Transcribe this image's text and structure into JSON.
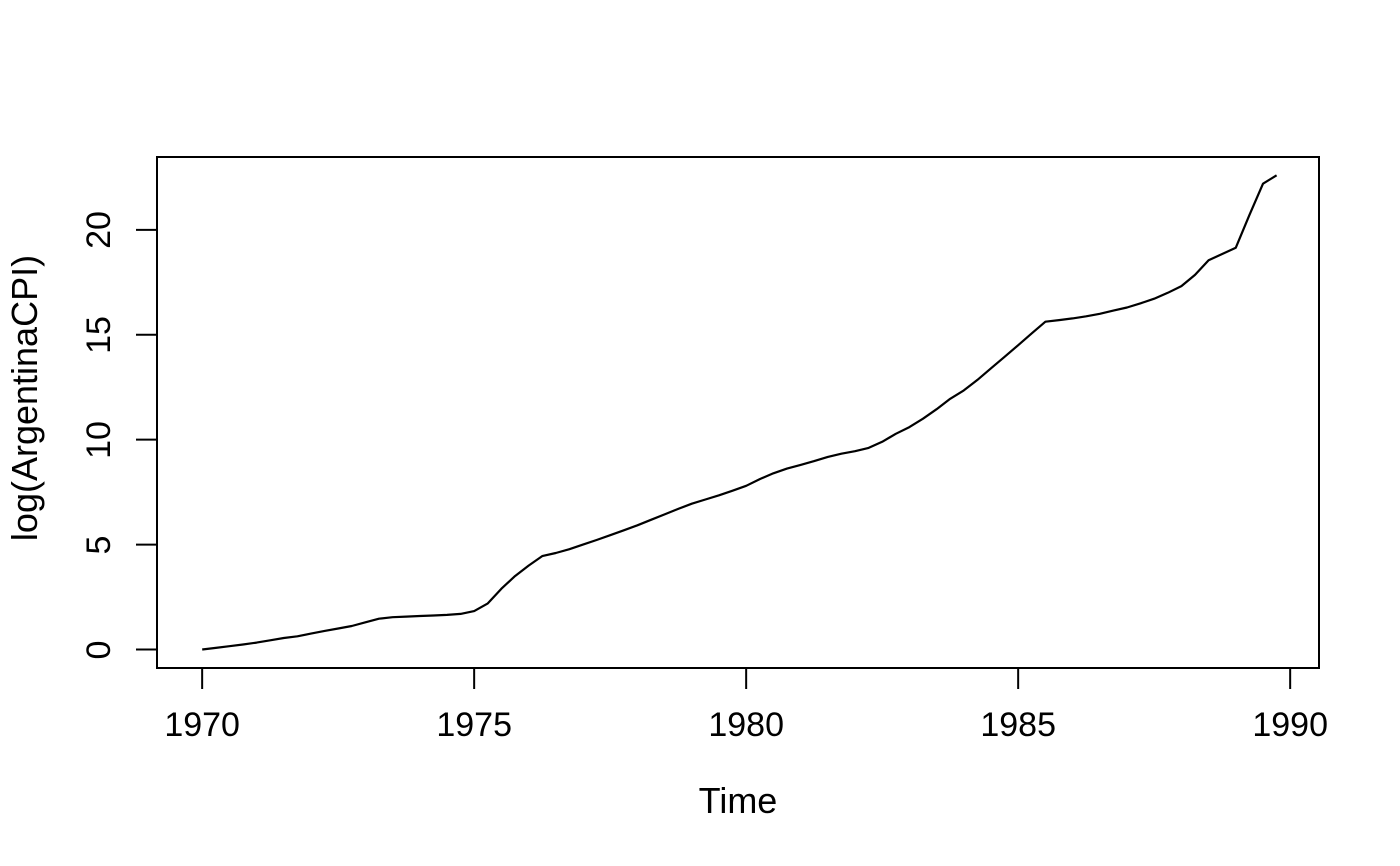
{
  "figure": {
    "background_color": "#ffffff",
    "axis_color": "#000000",
    "text_color": "#000000"
  },
  "chart_data": {
    "type": "line",
    "title": "",
    "xlabel": "Time",
    "ylabel": "log(ArgentinaCPI)",
    "series_name": "log(ArgentinaCPI)",
    "line_color": "#000000",
    "grid": false,
    "legend": "none",
    "frequency": "quarterly",
    "x_start": 1970,
    "x_interval": 0.25,
    "xlim": [
      1969.17,
      1990.53
    ],
    "ylim": [
      -0.88,
      23.47
    ],
    "x_ticks": [
      1970,
      1975,
      1980,
      1985,
      1990
    ],
    "x_tick_labels": [
      "1970",
      "1975",
      "1980",
      "1985",
      "1990"
    ],
    "y_ticks": [
      0,
      5,
      10,
      15,
      20
    ],
    "y_tick_labels": [
      "0",
      "5",
      "10",
      "15",
      "20"
    ],
    "values": [
      0.0,
      0.08,
      0.16,
      0.24,
      0.33,
      0.44,
      0.55,
      0.63,
      0.76,
      0.89,
      1.0,
      1.12,
      1.3,
      1.47,
      1.54,
      1.57,
      1.6,
      1.62,
      1.65,
      1.7,
      1.83,
      2.2,
      2.9,
      3.5,
      4.0,
      4.45,
      4.6,
      4.78,
      5.0,
      5.22,
      5.45,
      5.68,
      5.92,
      6.18,
      6.44,
      6.7,
      6.95,
      7.15,
      7.35,
      7.57,
      7.8,
      8.12,
      8.4,
      8.62,
      8.8,
      8.98,
      9.18,
      9.33,
      9.45,
      9.61,
      9.9,
      10.28,
      10.6,
      11.0,
      11.45,
      11.95,
      12.35,
      12.85,
      13.4,
      13.95,
      14.5,
      15.07,
      15.62,
      15.7,
      15.78,
      15.88,
      16.0,
      16.15,
      16.3,
      16.5,
      16.72,
      17.0,
      17.32,
      17.85,
      18.55,
      18.85,
      19.15,
      20.7,
      22.2,
      22.6
    ]
  }
}
